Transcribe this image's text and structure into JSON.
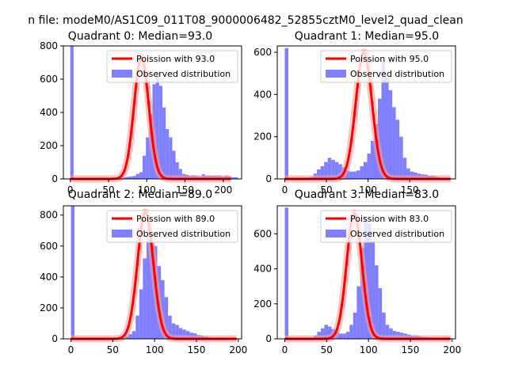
{
  "figure": {
    "suptitle": "n file: modeM0/AS1C09_011T08_9000006482_52855cztM0_level2_quad_clean"
  },
  "colors": {
    "histogram": "#7f7fff",
    "poisson_line": "#ff0000",
    "poisson_band": "#ff9999",
    "axes": "#000000",
    "background": "#ffffff"
  },
  "chart_data": [
    {
      "type": "histogram",
      "title": "Quadrant 0: Median=93.0",
      "xlim": [
        -9,
        224
      ],
      "ylim": [
        0,
        800
      ],
      "xticks": [
        0,
        50,
        100,
        150,
        200
      ],
      "yticks": [
        0,
        200,
        400,
        600,
        800
      ],
      "grid": false,
      "legend_position": "upper-right",
      "bin_width": 4.3,
      "bins_start": 0,
      "counts": [
        800,
        0,
        0,
        0,
        0,
        0,
        0,
        0,
        0,
        0,
        0,
        0,
        0,
        0,
        5,
        8,
        10,
        12,
        15,
        18,
        30,
        40,
        140,
        250,
        390,
        570,
        640,
        560,
        430,
        300,
        250,
        170,
        100,
        60,
        30,
        25,
        20,
        22,
        20,
        15,
        28,
        20,
        20,
        20,
        20,
        20,
        15,
        20,
        15,
        10,
        10
      ],
      "series": [
        {
          "name": "Poission with 93.0",
          "kind": "line",
          "lambda": 93.0,
          "peak": 730
        },
        {
          "name": "Observed distribution",
          "kind": "hist"
        }
      ]
    },
    {
      "type": "histogram",
      "title": "Quadrant 1: Median=95.0",
      "xlim": [
        -9,
        205
      ],
      "ylim": [
        0,
        630
      ],
      "xticks": [
        0,
        50,
        100,
        150
      ],
      "yticks": [
        0,
        200,
        400,
        600
      ],
      "grid": false,
      "legend_position": "upper-right",
      "bin_width": 4.3,
      "bins_start": 0,
      "counts": [
        620,
        0,
        0,
        0,
        0,
        0,
        0,
        10,
        25,
        45,
        60,
        80,
        100,
        90,
        80,
        70,
        55,
        40,
        35,
        35,
        40,
        60,
        80,
        120,
        180,
        260,
        380,
        560,
        480,
        420,
        340,
        280,
        200,
        100,
        50,
        35,
        30,
        25,
        22,
        20,
        15,
        15,
        10,
        5,
        5
      ],
      "series": [
        {
          "name": "Poission with 95.0",
          "kind": "line",
          "lambda": 95.0,
          "peak": 600
        },
        {
          "name": "Observed distribution",
          "kind": "hist"
        }
      ]
    },
    {
      "type": "histogram",
      "title": "Quadrant 2: Median=89.0",
      "xlim": [
        -9,
        204
      ],
      "ylim": [
        0,
        860
      ],
      "xticks": [
        0,
        50,
        100,
        150,
        200
      ],
      "yticks": [
        0,
        200,
        400,
        600,
        800
      ],
      "grid": false,
      "legend_position": "upper-right",
      "bin_width": 4.3,
      "bins_start": 0,
      "counts": [
        860,
        0,
        0,
        0,
        0,
        0,
        0,
        0,
        0,
        0,
        0,
        0,
        0,
        0,
        5,
        15,
        30,
        50,
        150,
        320,
        520,
        700,
        690,
        600,
        470,
        380,
        270,
        150,
        100,
        90,
        70,
        60,
        50,
        40,
        35,
        25,
        20,
        15,
        10,
        5,
        5,
        5,
        0,
        0,
        0
      ],
      "series": [
        {
          "name": "Poission with 89.0",
          "kind": "line",
          "lambda": 89.0,
          "peak": 820
        },
        {
          "name": "Observed distribution",
          "kind": "hist"
        }
      ]
    },
    {
      "type": "histogram",
      "title": "Quadrant 3: Median=83.0",
      "xlim": [
        -9,
        204
      ],
      "ylim": [
        0,
        760
      ],
      "xticks": [
        0,
        50,
        100,
        150,
        200
      ],
      "yticks": [
        0,
        200,
        400,
        600
      ],
      "grid": false,
      "legend_position": "upper-right",
      "bin_width": 4.3,
      "bins_start": 0,
      "counts": [
        750,
        0,
        0,
        0,
        0,
        0,
        0,
        5,
        20,
        40,
        60,
        80,
        70,
        55,
        40,
        30,
        30,
        40,
        80,
        150,
        300,
        520,
        700,
        660,
        560,
        420,
        290,
        150,
        80,
        60,
        45,
        40,
        35,
        30,
        25,
        20,
        20,
        15,
        10,
        10,
        8,
        5,
        0,
        0,
        0
      ],
      "series": [
        {
          "name": "Poission with 83.0",
          "kind": "line",
          "lambda": 83.0,
          "peak": 720
        },
        {
          "name": "Observed distribution",
          "kind": "hist"
        }
      ]
    }
  ]
}
